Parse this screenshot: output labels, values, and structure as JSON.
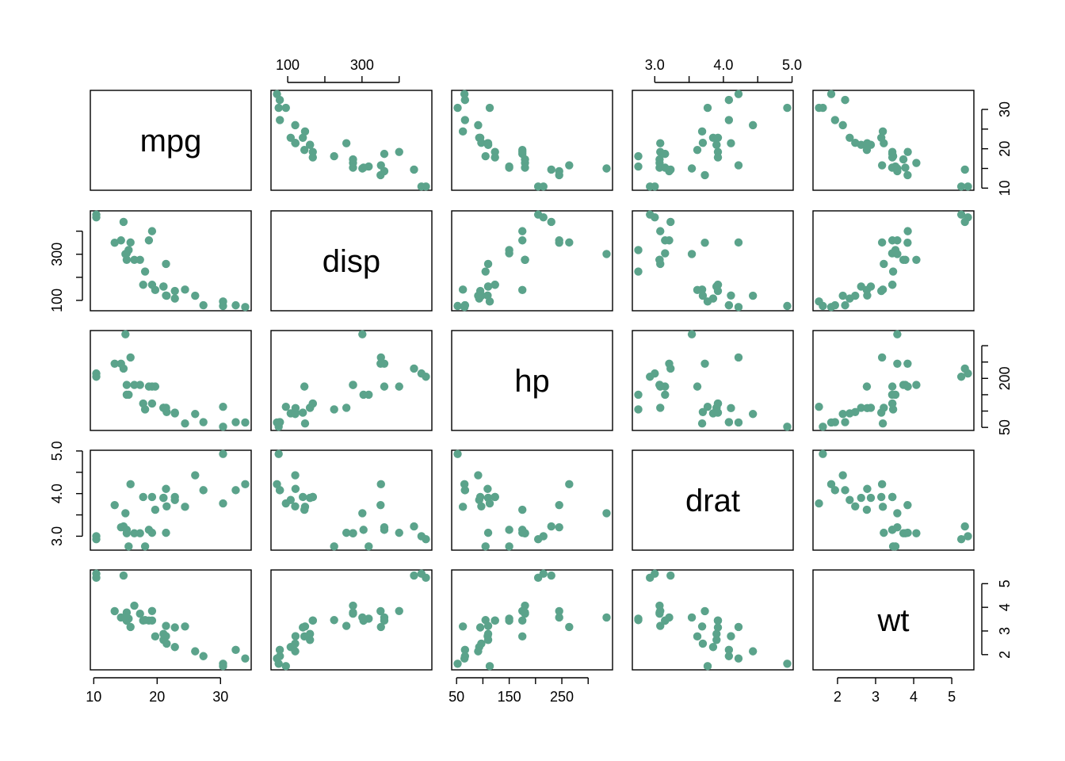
{
  "chart_data": {
    "type": "scatter-matrix",
    "point_color": "#5BA38B",
    "variables": [
      {
        "name": "mpg",
        "range": [
          10.4,
          33.9
        ],
        "ticks": [
          10,
          20,
          30
        ],
        "tick_labels": [
          "10",
          "20",
          "30"
        ]
      },
      {
        "name": "disp",
        "range": [
          71.1,
          472
        ],
        "ticks": [
          100,
          200,
          300,
          400
        ],
        "tick_labels": [
          "100",
          "",
          "300",
          ""
        ]
      },
      {
        "name": "hp",
        "range": [
          52,
          335
        ],
        "ticks": [
          50,
          100,
          150,
          200,
          250,
          300
        ],
        "tick_labels": [
          "50",
          "",
          "150",
          "",
          "250",
          ""
        ]
      },
      {
        "name": "drat",
        "range": [
          2.76,
          4.93
        ],
        "ticks": [
          3.0,
          3.5,
          4.0,
          4.5,
          5.0
        ],
        "tick_labels": [
          "3.0",
          "",
          "4.0",
          "",
          "5.0"
        ]
      },
      {
        "name": "wt",
        "range": [
          1.513,
          5.424
        ],
        "ticks": [
          2,
          3,
          4,
          5
        ],
        "tick_labels": [
          "2",
          "3",
          "4",
          "5"
        ]
      }
    ],
    "right_axis_labels": {
      "mpg": {
        "ticks": [
          10,
          15,
          20,
          25,
          30
        ],
        "tick_labels": [
          "10",
          "",
          "20",
          "",
          "30"
        ]
      },
      "hp": {
        "ticks": [
          50,
          100,
          150,
          200,
          250,
          300
        ],
        "tick_labels": [
          "50",
          "",
          "",
          "200",
          "",
          ""
        ]
      },
      "wt": {
        "ticks": [
          2,
          3,
          4,
          5
        ],
        "tick_labels": [
          "2",
          "3",
          "4",
          "5"
        ]
      }
    },
    "left_axis_labels": {
      "disp": {
        "ticks": [
          100,
          200,
          300,
          400
        ],
        "tick_labels": [
          "100",
          "",
          "300",
          ""
        ]
      },
      "drat": {
        "ticks": [
          3.0,
          3.5,
          4.0,
          4.5,
          5.0
        ],
        "tick_labels": [
          "3.0",
          "",
          "4.0",
          "",
          "5.0"
        ]
      }
    },
    "observations": [
      {
        "mpg": 21.0,
        "disp": 160.0,
        "hp": 110,
        "drat": 3.9,
        "wt": 2.62
      },
      {
        "mpg": 21.0,
        "disp": 160.0,
        "hp": 110,
        "drat": 3.9,
        "wt": 2.875
      },
      {
        "mpg": 22.8,
        "disp": 108.0,
        "hp": 93,
        "drat": 3.85,
        "wt": 2.32
      },
      {
        "mpg": 21.4,
        "disp": 258.0,
        "hp": 110,
        "drat": 3.08,
        "wt": 3.215
      },
      {
        "mpg": 18.7,
        "disp": 360.0,
        "hp": 175,
        "drat": 3.15,
        "wt": 3.44
      },
      {
        "mpg": 18.1,
        "disp": 225.0,
        "hp": 105,
        "drat": 2.76,
        "wt": 3.46
      },
      {
        "mpg": 14.3,
        "disp": 360.0,
        "hp": 245,
        "drat": 3.21,
        "wt": 3.57
      },
      {
        "mpg": 24.4,
        "disp": 146.7,
        "hp": 62,
        "drat": 3.69,
        "wt": 3.19
      },
      {
        "mpg": 22.8,
        "disp": 140.8,
        "hp": 95,
        "drat": 3.92,
        "wt": 3.15
      },
      {
        "mpg": 19.2,
        "disp": 167.6,
        "hp": 123,
        "drat": 3.92,
        "wt": 3.44
      },
      {
        "mpg": 17.8,
        "disp": 167.6,
        "hp": 123,
        "drat": 3.92,
        "wt": 3.44
      },
      {
        "mpg": 16.4,
        "disp": 275.8,
        "hp": 180,
        "drat": 3.07,
        "wt": 4.07
      },
      {
        "mpg": 17.3,
        "disp": 275.8,
        "hp": 180,
        "drat": 3.07,
        "wt": 3.73
      },
      {
        "mpg": 15.2,
        "disp": 275.8,
        "hp": 180,
        "drat": 3.07,
        "wt": 3.78
      },
      {
        "mpg": 10.4,
        "disp": 472.0,
        "hp": 205,
        "drat": 2.93,
        "wt": 5.25
      },
      {
        "mpg": 10.4,
        "disp": 460.0,
        "hp": 215,
        "drat": 3.0,
        "wt": 5.424
      },
      {
        "mpg": 14.7,
        "disp": 440.0,
        "hp": 230,
        "drat": 3.23,
        "wt": 5.345
      },
      {
        "mpg": 32.4,
        "disp": 78.7,
        "hp": 66,
        "drat": 4.08,
        "wt": 2.2
      },
      {
        "mpg": 30.4,
        "disp": 75.7,
        "hp": 52,
        "drat": 4.93,
        "wt": 1.615
      },
      {
        "mpg": 33.9,
        "disp": 71.1,
        "hp": 65,
        "drat": 4.22,
        "wt": 1.835
      },
      {
        "mpg": 21.5,
        "disp": 120.1,
        "hp": 97,
        "drat": 3.7,
        "wt": 2.465
      },
      {
        "mpg": 15.5,
        "disp": 318.0,
        "hp": 150,
        "drat": 2.76,
        "wt": 3.52
      },
      {
        "mpg": 15.2,
        "disp": 304.0,
        "hp": 150,
        "drat": 3.15,
        "wt": 3.435
      },
      {
        "mpg": 13.3,
        "disp": 350.0,
        "hp": 245,
        "drat": 3.73,
        "wt": 3.84
      },
      {
        "mpg": 19.2,
        "disp": 400.0,
        "hp": 175,
        "drat": 3.08,
        "wt": 3.845
      },
      {
        "mpg": 27.3,
        "disp": 79.0,
        "hp": 66,
        "drat": 4.08,
        "wt": 1.935
      },
      {
        "mpg": 26.0,
        "disp": 120.3,
        "hp": 91,
        "drat": 4.43,
        "wt": 2.14
      },
      {
        "mpg": 30.4,
        "disp": 95.1,
        "hp": 113,
        "drat": 3.77,
        "wt": 1.513
      },
      {
        "mpg": 15.8,
        "disp": 351.0,
        "hp": 264,
        "drat": 4.22,
        "wt": 3.17
      },
      {
        "mpg": 19.7,
        "disp": 145.0,
        "hp": 175,
        "drat": 3.62,
        "wt": 2.77
      },
      {
        "mpg": 15.0,
        "disp": 301.0,
        "hp": 335,
        "drat": 3.54,
        "wt": 3.57
      },
      {
        "mpg": 21.4,
        "disp": 121.0,
        "hp": 109,
        "drat": 4.11,
        "wt": 2.78
      }
    ]
  }
}
